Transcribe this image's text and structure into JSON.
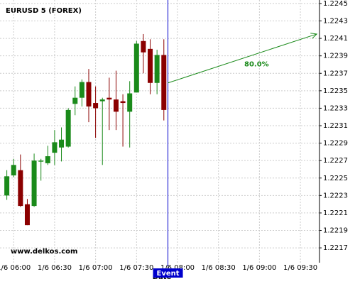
{
  "chart_data": {
    "type": "candlestick",
    "title": "EURUSD 5 (FOREX)",
    "x_label": "Date",
    "watermark": "www.delkos.com",
    "up_color": "#1a8a1a",
    "down_color": "#8b0000",
    "grid": true,
    "x": [
      "1/6 05:55",
      "1/6 06:00",
      "1/6 06:05",
      "1/6 06:10",
      "1/6 06:15",
      "1/6 06:20",
      "1/6 06:25",
      "1/6 06:30",
      "1/6 06:35",
      "1/6 06:40",
      "1/6 06:45",
      "1/6 06:50",
      "1/6 06:55",
      "1/6 07:00",
      "1/6 07:05",
      "1/6 07:10",
      "1/6 07:15",
      "1/6 07:20",
      "1/6 07:25",
      "1/6 07:30",
      "1/6 07:35",
      "1/6 07:40",
      "1/6 07:45",
      "1/6 07:50"
    ],
    "open": [
      1.2223,
      1.22253,
      1.22259,
      1.2222,
      1.22218,
      1.22269,
      1.22267,
      1.22279,
      1.22285,
      1.22286,
      1.22335,
      1.22342,
      1.2236,
      1.22336,
      1.22338,
      1.22342,
      1.2234,
      1.22338,
      1.22326,
      1.22348,
      1.22407,
      1.22398,
      1.22359,
      1.22391
    ],
    "high": [
      1.22259,
      1.22272,
      1.22277,
      1.22226,
      1.22278,
      1.22272,
      1.22287,
      1.22305,
      1.22308,
      1.2233,
      1.22355,
      1.22363,
      1.22375,
      1.22355,
      1.22342,
      1.22365,
      1.22373,
      1.22346,
      1.22361,
      1.22407,
      1.22415,
      1.22409,
      1.22397,
      1.22409
    ],
    "low": [
      1.22225,
      1.22251,
      1.22217,
      1.22196,
      1.22217,
      1.22247,
      1.22265,
      1.22265,
      1.22269,
      1.22285,
      1.22322,
      1.22332,
      1.22314,
      1.22296,
      1.22265,
      1.22305,
      1.22305,
      1.22286,
      1.22285,
      1.22348,
      1.2237,
      1.22346,
      1.22346,
      1.22316
    ],
    "close": [
      1.22252,
      1.22265,
      1.22218,
      1.22196,
      1.2227,
      1.2227,
      1.22275,
      1.22291,
      1.22294,
      1.22328,
      1.22342,
      1.2236,
      1.22332,
      1.2233,
      1.2234,
      1.2234,
      1.22326,
      1.22336,
      1.22347,
      1.22404,
      1.22394,
      1.22359,
      1.22391,
      1.22328
    ],
    "xlim": [
      "1/6 05:50",
      "1/6 09:44"
    ],
    "xticks": [
      "1/6 06:00",
      "1/6 06:30",
      "1/6 07:00",
      "1/6 07:30",
      "1/6 08:00",
      "1/6 08:30",
      "1/6 09:00",
      "1/6 09:30"
    ],
    "ylim": [
      1.22153,
      1.22454
    ],
    "yticks": [
      1.2217,
      1.2219,
      1.2221,
      1.2223,
      1.2225,
      1.2227,
      1.2229,
      1.2231,
      1.2233,
      1.2235,
      1.2237,
      1.2239,
      1.2241,
      1.2243,
      1.2245
    ],
    "event": {
      "label": "Event",
      "x": "1/6 07:53",
      "color": "#0000cc"
    },
    "arrow": {
      "from": [
        "1/6 07:53",
        1.22359
      ],
      "to": [
        "1/6 09:42",
        1.22415
      ],
      "label": "80.0%",
      "color": "#1a8a1a"
    }
  }
}
